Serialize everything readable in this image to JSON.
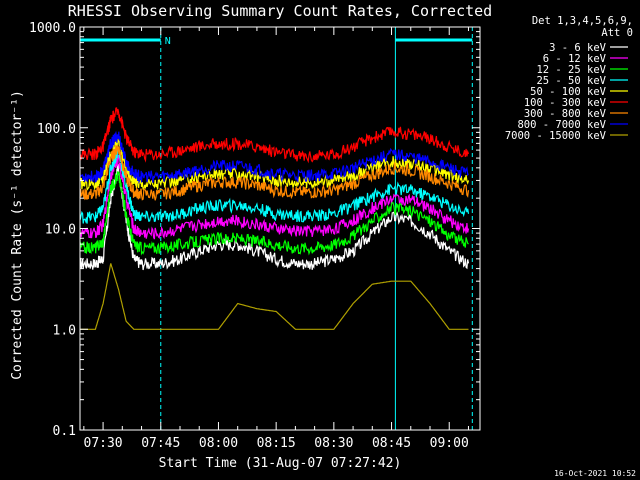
{
  "chart_data": {
    "type": "line",
    "title": "RHESSI Observing Summary Count Rates, Corrected",
    "xlabel": "Start Time (31-Aug-07 07:27:42)",
    "ylabel": "Corrected Count Rate (s⁻¹ detector⁻¹)",
    "y_scale": "log",
    "ylim": [
      0.1,
      1000
    ],
    "y_ticks": [
      "0.1",
      "1.0",
      "10.0",
      "100.0",
      "1000.0"
    ],
    "xlim": [
      "07:24",
      "09:08"
    ],
    "x_ticks": [
      "07:30",
      "07:45",
      "08:00",
      "08:15",
      "08:30",
      "08:45",
      "09:00"
    ],
    "legend_header": [
      "Det 1,3,4,5,6,9,",
      "Att 0"
    ],
    "legend_position": "top-right outside",
    "timestamp": "16-Oct-2021 10:52",
    "annotations": {
      "night_marker_label": "N",
      "night_intervals": [
        [
          "07:24",
          "07:45"
        ],
        [
          "08:46",
          "09:06"
        ]
      ],
      "dashed_lines": [
        "07:45",
        "09:06"
      ],
      "solid_lines": [
        "07:24",
        "08:46"
      ]
    },
    "x": [
      "07:24",
      "07:28",
      "07:30",
      "07:32",
      "07:34",
      "07:36",
      "07:38",
      "07:40",
      "07:45",
      "07:50",
      "07:55",
      "08:00",
      "08:05",
      "08:10",
      "08:15",
      "08:20",
      "08:25",
      "08:30",
      "08:35",
      "08:40",
      "08:45",
      "08:50",
      "08:55",
      "09:00",
      "09:05"
    ],
    "series": [
      {
        "name": "3 - 6 keV",
        "color": "#ffffff",
        "values": [
          4.5,
          4.5,
          5,
          20,
          40,
          12,
          5,
          4.5,
          4.5,
          5,
          6,
          7,
          7,
          6,
          5,
          4.5,
          4.5,
          5,
          6,
          9,
          13,
          12,
          9,
          6,
          4.5
        ]
      },
      {
        "name": "6 - 12 keV",
        "color": "#ff00ff",
        "values": [
          9,
          9,
          11,
          35,
          50,
          20,
          10,
          9,
          9,
          10,
          11,
          12,
          12,
          11,
          10,
          9.5,
          9.5,
          10,
          12,
          16,
          20,
          19,
          16,
          12,
          10
        ]
      },
      {
        "name": "12 - 25 keV",
        "color": "#00ff00",
        "values": [
          6.5,
          6.5,
          7.5,
          25,
          35,
          14,
          7,
          6.5,
          6.5,
          7,
          7.5,
          8,
          8,
          7.5,
          7,
          6.5,
          6.5,
          7,
          8.5,
          12,
          16,
          15,
          12,
          8.5,
          7
        ]
      },
      {
        "name": "25 - 50 keV",
        "color": "#00ffff",
        "values": [
          13,
          13,
          16,
          40,
          60,
          26,
          14,
          13,
          13,
          14,
          16,
          17,
          17,
          16,
          14,
          13.5,
          13.5,
          14,
          17,
          21,
          25,
          24,
          21,
          17,
          14
        ]
      },
      {
        "name": "50 - 100 keV",
        "color": "#ffff00",
        "values": [
          28,
          28,
          32,
          55,
          75,
          38,
          30,
          28,
          28,
          30,
          33,
          35,
          35,
          33,
          30,
          29,
          29,
          30,
          34,
          40,
          46,
          44,
          40,
          34,
          30
        ]
      },
      {
        "name": "100 - 300 keV",
        "color": "#ff0000",
        "values": [
          55,
          55,
          65,
          120,
          150,
          80,
          58,
          55,
          55,
          60,
          66,
          70,
          70,
          65,
          58,
          53,
          52,
          55,
          65,
          80,
          92,
          88,
          78,
          65,
          55
        ]
      },
      {
        "name": "300 - 800 keV",
        "color": "#ff8800",
        "values": [
          22,
          22,
          26,
          50,
          65,
          32,
          23,
          22,
          22,
          24,
          27,
          29,
          29,
          27,
          24,
          23,
          23,
          24,
          28,
          34,
          40,
          38,
          33,
          28,
          24
        ]
      },
      {
        "name": "800 - 7000 keV",
        "color": "#0000ff",
        "values": [
          33,
          33,
          38,
          70,
          85,
          45,
          35,
          33,
          33,
          35,
          39,
          42,
          42,
          39,
          35,
          34,
          34,
          35,
          40,
          48,
          55,
          52,
          46,
          40,
          35
        ]
      },
      {
        "name": "7000 - 15000 keV",
        "color": "#b0a000",
        "values": [
          1,
          1,
          1.8,
          4.5,
          2.5,
          1.2,
          1,
          1,
          1,
          1,
          1,
          1,
          1.8,
          1.6,
          1.5,
          1,
          1,
          1,
          1.8,
          2.8,
          3,
          3,
          1.8,
          1,
          1
        ]
      }
    ]
  }
}
